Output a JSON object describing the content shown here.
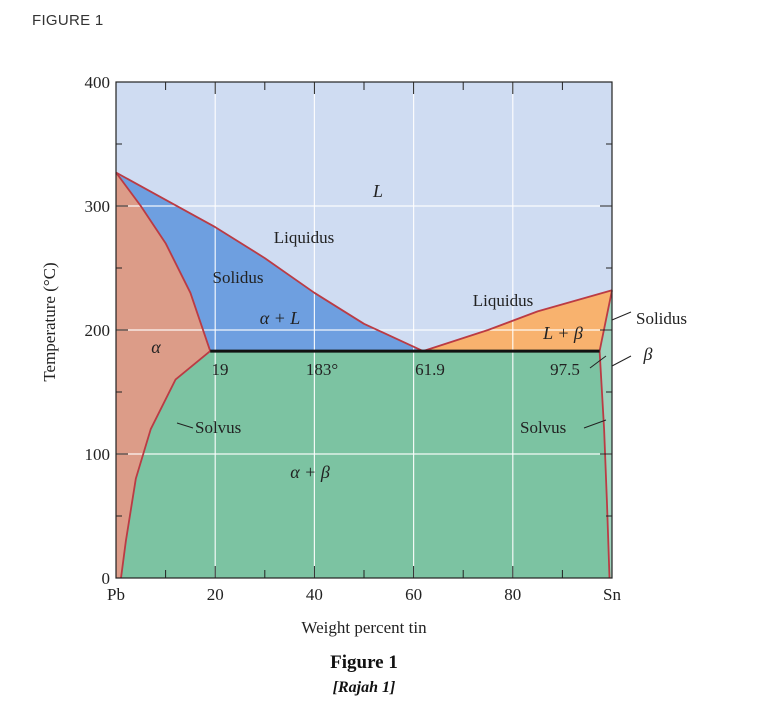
{
  "header": {
    "title": "FIGURE 1"
  },
  "chart_data": {
    "type": "area",
    "title": "",
    "caption": "Figure 1",
    "caption_alt": "[Rajah 1]",
    "xlabel": "Weight percent tin",
    "ylabel": "Temperature (°C)",
    "xlim": [
      0,
      100
    ],
    "ylim": [
      0,
      400
    ],
    "x_ticks": [
      {
        "value": 0,
        "label": "Pb"
      },
      {
        "value": 20,
        "label": "20"
      },
      {
        "value": 40,
        "label": "40"
      },
      {
        "value": 60,
        "label": "60"
      },
      {
        "value": 80,
        "label": "80"
      },
      {
        "value": 100,
        "label": "Sn"
      }
    ],
    "y_ticks": [
      {
        "value": 0,
        "label": "0"
      },
      {
        "value": 100,
        "label": "100"
      },
      {
        "value": 200,
        "label": "200"
      },
      {
        "value": 300,
        "label": "300"
      },
      {
        "value": 400,
        "label": "400"
      }
    ],
    "grid": true,
    "colors": {
      "liquid": "#cfdcf2",
      "alpha_plus_L": "#6e9fe0",
      "alpha": "#dc9c88",
      "alpha_plus_beta": "#7cc3a2",
      "L_plus_beta": "#f8b26e",
      "boundary": "#bb3b44",
      "eutectic": "#111111",
      "grid": "#ffffff"
    },
    "regions": [
      {
        "name": "L",
        "label": "L",
        "label_at": [
          53,
          320
        ]
      },
      {
        "name": "alpha_plus_L",
        "label": "α + L",
        "label_at": [
          34,
          210
        ]
      },
      {
        "name": "alpha",
        "label": "α",
        "label_at": [
          8,
          183
        ]
      },
      {
        "name": "alpha_plus_beta",
        "label": "α + β",
        "label_at": [
          35,
          85
        ]
      },
      {
        "name": "L_plus_beta",
        "label": "L + β",
        "label_at": [
          87,
          198
        ]
      },
      {
        "name": "beta",
        "label": "β",
        "label_at": [
          105,
          182
        ]
      }
    ],
    "curves": [
      {
        "name": "liquidus_left",
        "label": "Liquidus",
        "points": [
          [
            0,
            327
          ],
          [
            10,
            305
          ],
          [
            20,
            283
          ],
          [
            30,
            258
          ],
          [
            40,
            230
          ],
          [
            50,
            205
          ],
          [
            61.9,
            183
          ]
        ]
      },
      {
        "name": "liquidus_right",
        "label": "Liquidus",
        "points": [
          [
            61.9,
            183
          ],
          [
            75,
            200
          ],
          [
            85,
            215
          ],
          [
            100,
            232
          ]
        ]
      },
      {
        "name": "solidus_left",
        "label": "Solidus",
        "points": [
          [
            0,
            327
          ],
          [
            5,
            300
          ],
          [
            10,
            270
          ],
          [
            15,
            230
          ],
          [
            19,
            183
          ]
        ]
      },
      {
        "name": "solidus_right",
        "label": "Solidus",
        "points": [
          [
            97.5,
            183
          ],
          [
            100,
            232
          ]
        ]
      },
      {
        "name": "solvus_left",
        "label": "Solvus",
        "points": [
          [
            19,
            183
          ],
          [
            12,
            160
          ],
          [
            7,
            120
          ],
          [
            4,
            80
          ],
          [
            2,
            30
          ],
          [
            1,
            0
          ]
        ]
      },
      {
        "name": "solvus_right",
        "label": "Solvus",
        "points": [
          [
            97.5,
            183
          ],
          [
            98.4,
            120
          ],
          [
            99,
            60
          ],
          [
            99.5,
            0
          ]
        ]
      },
      {
        "name": "eutectic_isotherm",
        "label": "183°",
        "points": [
          [
            19,
            183
          ],
          [
            97.5,
            183
          ]
        ]
      }
    ],
    "eutectic": {
      "temperature": 183,
      "label": "183°",
      "compositions": [
        {
          "value": 19,
          "label": "19"
        },
        {
          "value": 61.9,
          "label": "61.9"
        },
        {
          "value": 97.5,
          "label": "97.5"
        }
      ]
    }
  }
}
